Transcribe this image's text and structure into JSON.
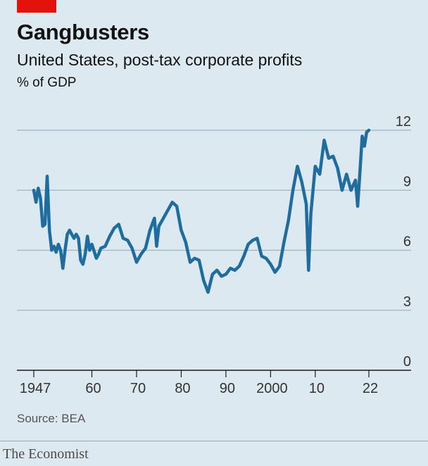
{
  "header": {
    "title": "Gangbusters",
    "subtitle": "United States, post-tax corporate profits",
    "unit": "% of GDP"
  },
  "footer": {
    "source": "Source: BEA",
    "brand": "The Economist"
  },
  "colors": {
    "background": "#dde9f0",
    "line": "#1f6d9e",
    "gridline": "#9fb3bf",
    "brand_red": "#e3120b"
  },
  "chart_data": {
    "type": "line",
    "title": "Gangbusters",
    "subtitle": "United States, post-tax corporate profits",
    "ylabel": "% of GDP",
    "xlabel": "",
    "ylim": [
      0,
      12
    ],
    "xlim": [
      1947,
      2022
    ],
    "yticks": [
      0,
      3,
      6,
      9,
      12
    ],
    "ytick_labels": [
      "0",
      "3",
      "6",
      "9",
      "12"
    ],
    "xticks": [
      1947,
      1960,
      1970,
      1980,
      1990,
      2000,
      2010,
      2022
    ],
    "xtick_labels": [
      "1947",
      "60",
      "70",
      "80",
      "90",
      "2000",
      "10",
      "22"
    ],
    "grid": true,
    "series": [
      {
        "x": [
          1947.0,
          1947.5,
          1948.0,
          1948.5,
          1949.0,
          1949.5,
          1950.0,
          1950.5,
          1951.0,
          1951.5,
          1952.0,
          1952.5,
          1953.0,
          1953.5,
          1954.0,
          1954.5,
          1955.0,
          1955.5,
          1956.0,
          1956.5,
          1957.0,
          1957.5,
          1958.0,
          1958.5,
          1959.0,
          1959.5,
          1960.0,
          1961.0,
          1961.5,
          1962.0,
          1963.0,
          1964.0,
          1965.0,
          1966.0,
          1967.0,
          1968.0,
          1969.0,
          1970.0,
          1971.0,
          1972.0,
          1973.0,
          1973.5,
          1974.0,
          1974.5,
          1975.0,
          1976.0,
          1977.0,
          1978.0,
          1979.0,
          1980.0,
          1981.0,
          1982.0,
          1983.0,
          1984.0,
          1985.0,
          1986.0,
          1987.0,
          1988.0,
          1989.0,
          1990.0,
          1991.0,
          1992.0,
          1993.0,
          1994.0,
          1995.0,
          1996.0,
          1997.0,
          1998.0,
          1999.0,
          2000.0,
          2001.0,
          2002.0,
          2003.0,
          2004.0,
          2005.0,
          2006.0,
          2007.0,
          2008.0,
          2008.5,
          2009.0,
          2010.0,
          2011.0,
          2012.0,
          2013.0,
          2014.0,
          2015.0,
          2016.0,
          2017.0,
          2018.0,
          2019.0,
          2019.5,
          2020.0,
          2020.5,
          2021.0,
          2021.5,
          2022.0
        ],
        "values": [
          9.0,
          8.4,
          9.1,
          8.6,
          7.2,
          7.3,
          9.7,
          7.0,
          6.0,
          6.2,
          5.9,
          6.3,
          6.0,
          5.1,
          6.0,
          6.8,
          7.0,
          6.8,
          6.6,
          6.8,
          6.6,
          5.5,
          5.3,
          5.8,
          6.7,
          6.0,
          6.3,
          5.6,
          5.8,
          6.1,
          6.2,
          6.7,
          7.1,
          7.3,
          6.6,
          6.5,
          6.1,
          5.4,
          5.8,
          6.1,
          7.0,
          7.3,
          7.6,
          6.2,
          7.2,
          7.6,
          8.0,
          8.4,
          8.2,
          7.0,
          6.4,
          5.4,
          5.6,
          5.5,
          4.5,
          3.9,
          4.8,
          5.0,
          4.7,
          4.8,
          5.1,
          5.0,
          5.2,
          5.7,
          6.3,
          6.5,
          6.6,
          5.7,
          5.6,
          5.3,
          4.9,
          5.2,
          6.4,
          7.5,
          9.0,
          10.2,
          9.4,
          8.3,
          5.0,
          7.8,
          10.2,
          9.8,
          11.5,
          10.6,
          10.7,
          10.1,
          9.0,
          9.8,
          9.0,
          9.5,
          8.2,
          9.9,
          11.7,
          11.2,
          11.9,
          12.0
        ]
      }
    ]
  }
}
